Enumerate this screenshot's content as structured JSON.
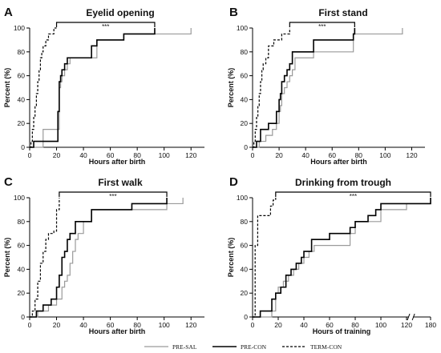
{
  "legend": {
    "entries": [
      {
        "name": "PRE-SAL",
        "color": "#9a9a9a",
        "dash": "solid",
        "width": 1.2
      },
      {
        "name": "PRE-CON",
        "color": "#000000",
        "dash": "solid",
        "width": 1.6
      },
      {
        "name": "TERM-CON",
        "color": "#000000",
        "dash": "dashed",
        "width": 1.2
      }
    ]
  },
  "chart_data": [
    {
      "type": "line",
      "letter": "A",
      "title": "Eyelid opening",
      "xlabel": "Hours after birth",
      "ylabel": "Percent (%)",
      "xlim": [
        0,
        130
      ],
      "ylim": [
        0,
        100
      ],
      "xticks": [
        "0",
        "20",
        "40",
        "60",
        "80",
        "100",
        "120"
      ],
      "yticks": [
        "0",
        "20",
        "40",
        "60",
        "80",
        "100"
      ],
      "significance": {
        "text": "***",
        "x_from": 20,
        "x_to": 93
      },
      "series": [
        {
          "name": "PRE-SAL",
          "x": [
            0,
            10,
            20,
            22,
            23,
            24,
            26,
            28,
            30,
            50,
            70,
            93,
            120,
            120
          ],
          "y": [
            0,
            15,
            15,
            50,
            55,
            60,
            65,
            70,
            75,
            90,
            95,
            95,
            95,
            100
          ]
        },
        {
          "name": "PRE-CON",
          "x": [
            0,
            3,
            20,
            21,
            22,
            23,
            24,
            26,
            28,
            30,
            46,
            50,
            70,
            93,
            93
          ],
          "y": [
            0,
            5,
            5,
            30,
            55,
            60,
            65,
            70,
            75,
            75,
            85,
            90,
            95,
            95,
            100
          ]
        },
        {
          "name": "TERM-CON",
          "x": [
            0,
            1,
            2,
            3,
            4,
            5,
            6,
            7,
            8,
            9,
            10,
            12,
            14,
            16,
            17,
            18,
            20
          ],
          "y": [
            0,
            5,
            15,
            25,
            35,
            45,
            55,
            65,
            75,
            80,
            85,
            90,
            95,
            95,
            95,
            100,
            100
          ]
        }
      ]
    },
    {
      "type": "line",
      "letter": "B",
      "title": "First stand",
      "xlabel": "Hours after birth",
      "ylabel": "Percent (%)",
      "xlim": [
        0,
        130
      ],
      "ylim": [
        0,
        100
      ],
      "xticks": [
        "0",
        "20",
        "40",
        "60",
        "80",
        "100",
        "120"
      ],
      "yticks": [
        "0",
        "20",
        "40",
        "60",
        "80",
        "100"
      ],
      "significance": {
        "text": "***",
        "x_from": 28,
        "x_to": 77
      },
      "series": [
        {
          "name": "PRE-SAL",
          "x": [
            0,
            5,
            10,
            15,
            18,
            20,
            21,
            22,
            24,
            26,
            28,
            30,
            32,
            46,
            76,
            113,
            113
          ],
          "y": [
            0,
            5,
            10,
            15,
            20,
            30,
            35,
            45,
            50,
            55,
            60,
            65,
            75,
            80,
            95,
            95,
            100
          ]
        },
        {
          "name": "PRE-CON",
          "x": [
            0,
            3,
            6,
            12,
            18,
            20,
            21,
            22,
            24,
            26,
            28,
            30,
            46,
            76,
            77
          ],
          "y": [
            0,
            5,
            15,
            20,
            30,
            40,
            45,
            55,
            60,
            65,
            70,
            80,
            90,
            95,
            100
          ]
        },
        {
          "name": "TERM-CON",
          "x": [
            0,
            1,
            2,
            3,
            4,
            5,
            6,
            7,
            8,
            10,
            12,
            16,
            22,
            28
          ],
          "y": [
            0,
            5,
            15,
            25,
            35,
            45,
            55,
            65,
            70,
            75,
            85,
            90,
            95,
            100
          ]
        }
      ]
    },
    {
      "type": "line",
      "letter": "C",
      "title": "First walk",
      "xlabel": "Hours after birth",
      "ylabel": "Percent (%)",
      "xlim": [
        0,
        130
      ],
      "ylim": [
        0,
        100
      ],
      "xticks": [
        "0",
        "20",
        "40",
        "60",
        "80",
        "100",
        "120"
      ],
      "yticks": [
        "0",
        "20",
        "40",
        "60",
        "80",
        "100"
      ],
      "significance": {
        "text": "***",
        "x_from": 22,
        "x_to": 102
      },
      "series": [
        {
          "name": "PRE-SAL",
          "x": [
            0,
            6,
            14,
            20,
            24,
            26,
            28,
            30,
            32,
            34,
            36,
            40,
            46,
            76,
            102,
            114,
            114
          ],
          "y": [
            0,
            5,
            10,
            15,
            25,
            30,
            35,
            45,
            55,
            65,
            70,
            80,
            90,
            90,
            95,
            95,
            100
          ]
        },
        {
          "name": "PRE-CON",
          "x": [
            0,
            5,
            10,
            16,
            20,
            22,
            24,
            26,
            28,
            30,
            34,
            46,
            76,
            102,
            102
          ],
          "y": [
            0,
            5,
            10,
            15,
            25,
            35,
            50,
            55,
            65,
            70,
            80,
            90,
            95,
            95,
            100
          ]
        },
        {
          "name": "TERM-CON",
          "x": [
            0,
            2,
            4,
            6,
            8,
            10,
            12,
            14,
            16,
            18,
            20,
            22
          ],
          "y": [
            0,
            5,
            15,
            30,
            45,
            55,
            65,
            70,
            70,
            72,
            90,
            100
          ]
        }
      ]
    },
    {
      "type": "line",
      "letter": "D",
      "title": "Drinking from trough",
      "xlabel": "Hours of training",
      "ylabel": "Percent (%)",
      "xlim": [
        0,
        180
      ],
      "ylim": [
        0,
        100
      ],
      "axis_break": {
        "after": 120,
        "before": 180
      },
      "xticks": [
        "0",
        "20",
        "40",
        "60",
        "80",
        "100",
        "120",
        "180"
      ],
      "yticks": [
        "0",
        "20",
        "40",
        "60",
        "80",
        "100"
      ],
      "significance": {
        "text": "***",
        "x_from": 18,
        "x_to": 180
      },
      "series": [
        {
          "name": "PRE-SAL",
          "x": [
            0,
            15,
            18,
            20,
            24,
            28,
            32,
            36,
            40,
            44,
            48,
            76,
            80,
            100,
            120,
            180
          ],
          "y": [
            0,
            5,
            20,
            25,
            30,
            35,
            40,
            45,
            50,
            55,
            60,
            70,
            80,
            90,
            95,
            100
          ]
        },
        {
          "name": "PRE-CON",
          "x": [
            0,
            6,
            15,
            18,
            22,
            26,
            30,
            34,
            38,
            40,
            46,
            60,
            76,
            80,
            90,
            96,
            100,
            120,
            180
          ],
          "y": [
            0,
            5,
            15,
            20,
            25,
            35,
            40,
            45,
            50,
            55,
            65,
            70,
            75,
            80,
            85,
            90,
            95,
            95,
            100
          ]
        },
        {
          "name": "TERM-CON",
          "x": [
            0,
            2,
            4,
            14,
            16,
            18
          ],
          "y": [
            0,
            60,
            85,
            93,
            98,
            100
          ]
        }
      ]
    }
  ]
}
